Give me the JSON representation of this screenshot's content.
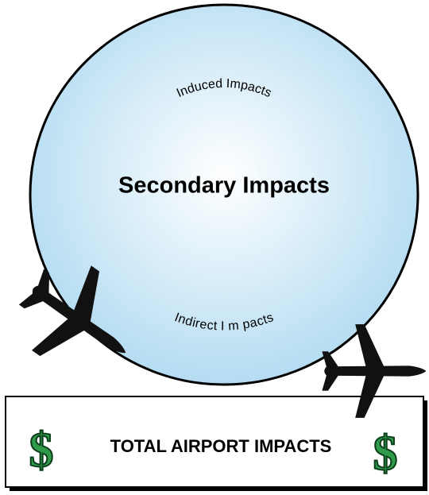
{
  "circle": {
    "outer_label": "Induced Impacts",
    "center_label": "Secondary Impacts",
    "inner_label": "Indirect I m pacts"
  },
  "box": {
    "label": "TOTAL AIRPORT IMPACTS",
    "left_symbol": "$",
    "right_symbol": "$"
  }
}
